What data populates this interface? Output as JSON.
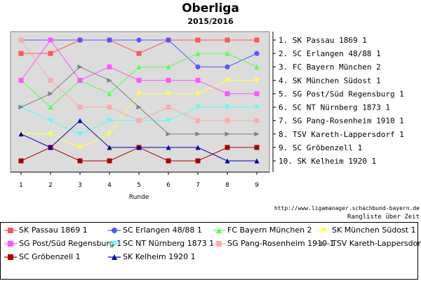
{
  "header": {
    "title": "Oberliga",
    "subtitle": "2015/2016"
  },
  "footer": {
    "source": "http://www.ligamanager.schachbund-bayern.de",
    "note": "Rangliste über Zeit"
  },
  "chart_data": {
    "type": "line",
    "title": "Oberliga",
    "subtitle": "2015/2016",
    "xlabel": "Runde",
    "ylabel": "",
    "x": [
      1,
      2,
      3,
      4,
      5,
      6,
      7,
      8,
      9
    ],
    "xlim": [
      1,
      9
    ],
    "ylim": [
      1,
      10
    ],
    "y_inverted": true,
    "grid": false,
    "y_tick_labels": [
      "1.  SK Passau 1869 1",
      "2.  SC Erlangen 48/88 1",
      "3.  FC Bayern München 2",
      "4.  SK München Südost 1",
      "5.  SG Post/Süd Regensburg 1",
      "6.  SC NT Nürnberg 1873 1",
      "7.  SG Pang-Rosenheim 1910 1",
      "8.  TSV Kareth-Lappersdorf 1",
      "9.  SC Gröbenzell 1",
      "10. SK Kelheim 1920 1"
    ],
    "legend_position": "bottom",
    "series": [
      {
        "name": "SK Passau 1869 1",
        "color": "#ff5555",
        "marker": "square",
        "values": [
          2,
          2,
          1,
          1,
          2,
          1,
          1,
          1,
          1
        ]
      },
      {
        "name": "SC Erlangen 48/88 1",
        "color": "#5555ff",
        "marker": "circle",
        "values": [
          1,
          1,
          1,
          1,
          1,
          1,
          3,
          3,
          2
        ]
      },
      {
        "name": "FC Bayern München 2",
        "color": "#55ff55",
        "marker": "triangle-up",
        "values": [
          4,
          6,
          4,
          5,
          3,
          3,
          2,
          2,
          3
        ]
      },
      {
        "name": "SK München Südost 1",
        "color": "#ffff44",
        "marker": "triangle-down",
        "values": [
          8,
          8,
          9,
          8,
          5,
          5,
          5,
          4,
          4
        ]
      },
      {
        "name": "SG Post/Süd Regensburg 1",
        "color": "#ff55ff",
        "marker": "square",
        "values": [
          4,
          1,
          4,
          3,
          4,
          4,
          4,
          5,
          5
        ]
      },
      {
        "name": "SC NT Nürnberg 1873 1",
        "color": "#55ffff",
        "marker": "triangle-down",
        "values": [
          6,
          7,
          8,
          7,
          7,
          7,
          6,
          6,
          6
        ]
      },
      {
        "name": "SG Pang-Rosenheim 1910 1",
        "color": "#ffaaaa",
        "marker": "square",
        "values": [
          1,
          4,
          6,
          6,
          7,
          6,
          7,
          7,
          7
        ]
      },
      {
        "name": "TSV Kareth-Lappersdorf 1",
        "color": "#808080",
        "marker": "triangle-right",
        "values": [
          6,
          5,
          3,
          4,
          6,
          8,
          8,
          8,
          8
        ]
      },
      {
        "name": "SC Gröbenzell 1",
        "color": "#aa0000",
        "marker": "square",
        "values": [
          10,
          9,
          10,
          10,
          9,
          10,
          10,
          9,
          9
        ]
      },
      {
        "name": "SK Kelheim 1920 1",
        "color": "#0000aa",
        "marker": "triangle-up",
        "values": [
          8,
          9,
          7,
          9,
          9,
          9,
          9,
          10,
          10
        ]
      }
    ]
  }
}
